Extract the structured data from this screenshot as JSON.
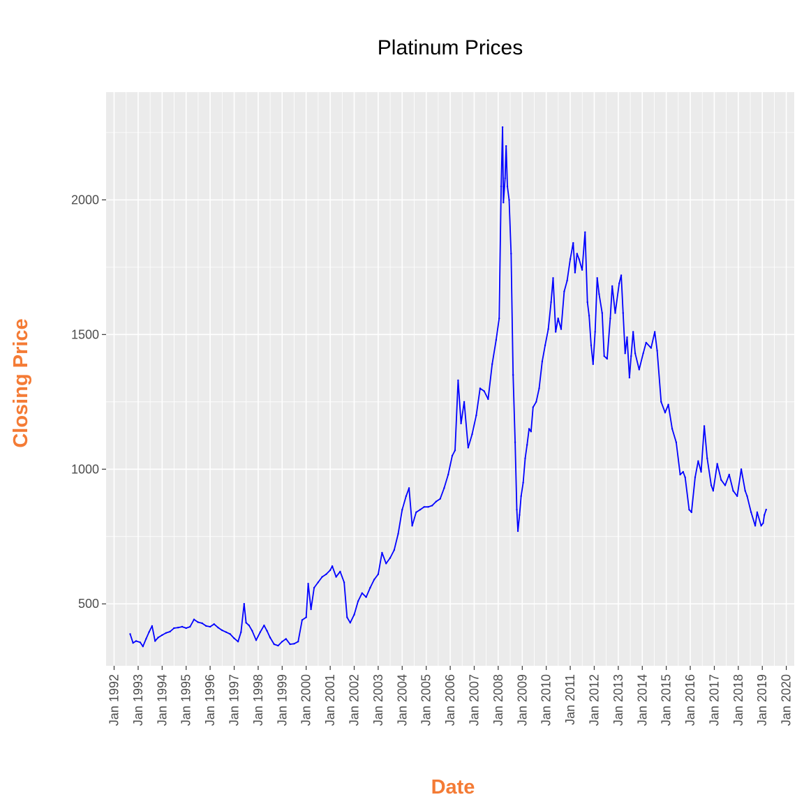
{
  "chart_data": {
    "type": "line",
    "title": "Platinum Prices",
    "xlabel": "Date",
    "ylabel": "Closing Price",
    "xlim": [
      "1991-09-01",
      "2020-05-01"
    ],
    "ylim": [
      270,
      2400
    ],
    "y_ticks": [
      500,
      1000,
      1500,
      2000
    ],
    "x_ticks": [
      {
        "label": "Jan 1992",
        "date": "1992-01-01"
      },
      {
        "label": "Jan 1993",
        "date": "1993-01-01"
      },
      {
        "label": "Jan 1994",
        "date": "1994-01-01"
      },
      {
        "label": "Jan 1995",
        "date": "1995-01-01"
      },
      {
        "label": "Jan 1996",
        "date": "1996-01-01"
      },
      {
        "label": "Jan 1997",
        "date": "1997-01-01"
      },
      {
        "label": "Jan 1998",
        "date": "1998-01-01"
      },
      {
        "label": "Jan 1999",
        "date": "1999-01-01"
      },
      {
        "label": "Jan 2000",
        "date": "2000-01-01"
      },
      {
        "label": "Jan 2001",
        "date": "2001-01-01"
      },
      {
        "label": "Jan 2002",
        "date": "2002-01-01"
      },
      {
        "label": "Jan 2003",
        "date": "2003-01-01"
      },
      {
        "label": "Jan 2004",
        "date": "2004-01-01"
      },
      {
        "label": "Jan 2005",
        "date": "2005-01-01"
      },
      {
        "label": "Jan 2006",
        "date": "2006-01-01"
      },
      {
        "label": "Jan 2007",
        "date": "2007-01-01"
      },
      {
        "label": "Jan 2008",
        "date": "2008-01-01"
      },
      {
        "label": "Jan 2009",
        "date": "2009-01-01"
      },
      {
        "label": "Jan 2010",
        "date": "2010-01-01"
      },
      {
        "label": "Jan 2011",
        "date": "2011-01-01"
      },
      {
        "label": "Jan 2012",
        "date": "2012-01-01"
      },
      {
        "label": "Jan 2013",
        "date": "2013-01-01"
      },
      {
        "label": "Jan 2014",
        "date": "2014-01-01"
      },
      {
        "label": "Jan 2015",
        "date": "2015-01-01"
      },
      {
        "label": "Jan 2016",
        "date": "2016-01-01"
      },
      {
        "label": "Jan 2017",
        "date": "2017-01-01"
      },
      {
        "label": "Jan 2018",
        "date": "2018-01-01"
      },
      {
        "label": "Jan 2019",
        "date": "2019-01-01"
      },
      {
        "label": "Jan 2020",
        "date": "2020-01-01"
      }
    ],
    "grid": true,
    "legend": "none",
    "series": [
      {
        "color": "#0000ff",
        "points": [
          [
            "1992-09-01",
            388
          ],
          [
            "1992-10-15",
            355
          ],
          [
            "1992-12-01",
            362
          ],
          [
            "1993-02-01",
            357
          ],
          [
            "1993-03-15",
            342
          ],
          [
            "1993-05-01",
            370
          ],
          [
            "1993-06-15",
            395
          ],
          [
            "1993-08-01",
            418
          ],
          [
            "1993-09-15",
            362
          ],
          [
            "1993-11-01",
            375
          ],
          [
            "1994-01-01",
            384
          ],
          [
            "1994-03-01",
            392
          ],
          [
            "1994-05-01",
            397
          ],
          [
            "1994-07-01",
            410
          ],
          [
            "1994-09-01",
            412
          ],
          [
            "1994-11-01",
            415
          ],
          [
            "1995-01-01",
            410
          ],
          [
            "1995-03-01",
            415
          ],
          [
            "1995-05-01",
            442
          ],
          [
            "1995-07-01",
            432
          ],
          [
            "1995-09-01",
            428
          ],
          [
            "1995-11-01",
            418
          ],
          [
            "1996-01-01",
            415
          ],
          [
            "1996-03-01",
            425
          ],
          [
            "1996-05-01",
            412
          ],
          [
            "1996-07-01",
            402
          ],
          [
            "1996-09-01",
            395
          ],
          [
            "1996-11-01",
            388
          ],
          [
            "1997-01-01",
            372
          ],
          [
            "1997-03-01",
            360
          ],
          [
            "1997-04-15",
            395
          ],
          [
            "1997-06-01",
            500
          ],
          [
            "1997-07-01",
            430
          ],
          [
            "1997-08-15",
            420
          ],
          [
            "1997-10-01",
            400
          ],
          [
            "1997-12-01",
            365
          ],
          [
            "1998-02-01",
            395
          ],
          [
            "1998-04-01",
            420
          ],
          [
            "1998-05-15",
            400
          ],
          [
            "1998-07-01",
            375
          ],
          [
            "1998-09-01",
            350
          ],
          [
            "1998-11-01",
            345
          ],
          [
            "1999-01-01",
            360
          ],
          [
            "1999-03-01",
            370
          ],
          [
            "1999-05-01",
            350
          ],
          [
            "1999-07-01",
            352
          ],
          [
            "1999-09-01",
            360
          ],
          [
            "1999-11-01",
            440
          ],
          [
            "2000-01-01",
            450
          ],
          [
            "2000-02-01",
            575
          ],
          [
            "2000-03-15",
            480
          ],
          [
            "2000-05-01",
            560
          ],
          [
            "2000-07-01",
            580
          ],
          [
            "2000-09-01",
            600
          ],
          [
            "2000-11-01",
            610
          ],
          [
            "2001-01-01",
            625
          ],
          [
            "2001-02-01",
            640
          ],
          [
            "2001-04-01",
            600
          ],
          [
            "2001-06-01",
            620
          ],
          [
            "2001-08-01",
            580
          ],
          [
            "2001-09-15",
            450
          ],
          [
            "2001-11-01",
            430
          ],
          [
            "2002-01-01",
            460
          ],
          [
            "2002-03-01",
            510
          ],
          [
            "2002-05-01",
            540
          ],
          [
            "2002-07-01",
            525
          ],
          [
            "2002-09-01",
            560
          ],
          [
            "2002-11-01",
            590
          ],
          [
            "2003-01-01",
            610
          ],
          [
            "2003-03-01",
            690
          ],
          [
            "2003-05-01",
            650
          ],
          [
            "2003-07-01",
            670
          ],
          [
            "2003-09-01",
            700
          ],
          [
            "2003-11-01",
            760
          ],
          [
            "2004-01-01",
            850
          ],
          [
            "2004-03-01",
            900
          ],
          [
            "2004-04-15",
            930
          ],
          [
            "2004-06-01",
            790
          ],
          [
            "2004-08-01",
            840
          ],
          [
            "2004-10-01",
            850
          ],
          [
            "2004-12-01",
            860
          ],
          [
            "2005-02-01",
            860
          ],
          [
            "2005-04-01",
            865
          ],
          [
            "2005-06-01",
            880
          ],
          [
            "2005-08-01",
            890
          ],
          [
            "2005-10-01",
            930
          ],
          [
            "2005-12-01",
            980
          ],
          [
            "2006-02-01",
            1050
          ],
          [
            "2006-03-15",
            1070
          ],
          [
            "2006-05-01",
            1330
          ],
          [
            "2006-06-15",
            1170
          ],
          [
            "2006-08-01",
            1250
          ],
          [
            "2006-10-01",
            1080
          ],
          [
            "2006-12-01",
            1130
          ],
          [
            "2007-02-01",
            1200
          ],
          [
            "2007-04-01",
            1300
          ],
          [
            "2007-06-01",
            1290
          ],
          [
            "2007-08-01",
            1260
          ],
          [
            "2007-10-01",
            1390
          ],
          [
            "2007-12-01",
            1480
          ],
          [
            "2008-01-15",
            1560
          ],
          [
            "2008-02-15",
            2050
          ],
          [
            "2008-03-07",
            2270
          ],
          [
            "2008-03-20",
            1990
          ],
          [
            "2008-04-15",
            2080
          ],
          [
            "2008-05-01",
            2200
          ],
          [
            "2008-05-20",
            2050
          ],
          [
            "2008-06-15",
            2000
          ],
          [
            "2008-07-15",
            1800
          ],
          [
            "2008-08-15",
            1350
          ],
          [
            "2008-09-15",
            1100
          ],
          [
            "2008-10-10",
            850
          ],
          [
            "2008-10-27",
            770
          ],
          [
            "2008-11-20",
            830
          ],
          [
            "2008-12-15",
            900
          ],
          [
            "2009-01-15",
            950
          ],
          [
            "2009-02-15",
            1040
          ],
          [
            "2009-03-15",
            1090
          ],
          [
            "2009-04-15",
            1150
          ],
          [
            "2009-05-15",
            1140
          ],
          [
            "2009-06-15",
            1230
          ],
          [
            "2009-08-01",
            1250
          ],
          [
            "2009-09-15",
            1300
          ],
          [
            "2009-11-01",
            1400
          ],
          [
            "2009-12-15",
            1460
          ],
          [
            "2010-02-01",
            1520
          ],
          [
            "2010-03-15",
            1620
          ],
          [
            "2010-04-15",
            1710
          ],
          [
            "2010-05-25",
            1510
          ],
          [
            "2010-07-01",
            1560
          ],
          [
            "2010-08-15",
            1520
          ],
          [
            "2010-10-01",
            1660
          ],
          [
            "2010-11-15",
            1700
          ],
          [
            "2011-01-01",
            1780
          ],
          [
            "2011-02-15",
            1840
          ],
          [
            "2011-03-15",
            1730
          ],
          [
            "2011-04-15",
            1800
          ],
          [
            "2011-05-15",
            1780
          ],
          [
            "2011-07-01",
            1740
          ],
          [
            "2011-08-15",
            1880
          ],
          [
            "2011-09-20",
            1620
          ],
          [
            "2011-10-15",
            1570
          ],
          [
            "2011-11-15",
            1460
          ],
          [
            "2011-12-15",
            1390
          ],
          [
            "2012-01-15",
            1510
          ],
          [
            "2012-02-15",
            1710
          ],
          [
            "2012-03-15",
            1650
          ],
          [
            "2012-05-01",
            1580
          ],
          [
            "2012-06-01",
            1420
          ],
          [
            "2012-07-15",
            1410
          ],
          [
            "2012-09-01",
            1560
          ],
          [
            "2012-10-01",
            1680
          ],
          [
            "2012-11-15",
            1580
          ],
          [
            "2013-01-15",
            1690
          ],
          [
            "2013-02-15",
            1720
          ],
          [
            "2013-03-15",
            1580
          ],
          [
            "2013-04-15",
            1430
          ],
          [
            "2013-05-15",
            1490
          ],
          [
            "2013-06-20",
            1340
          ],
          [
            "2013-07-15",
            1420
          ],
          [
            "2013-08-15",
            1510
          ],
          [
            "2013-09-15",
            1430
          ],
          [
            "2013-11-15",
            1370
          ],
          [
            "2014-01-15",
            1430
          ],
          [
            "2014-03-01",
            1470
          ],
          [
            "2014-05-15",
            1450
          ],
          [
            "2014-07-10",
            1510
          ],
          [
            "2014-08-15",
            1440
          ],
          [
            "2014-10-15",
            1250
          ],
          [
            "2014-12-15",
            1210
          ],
          [
            "2015-02-01",
            1240
          ],
          [
            "2015-04-01",
            1150
          ],
          [
            "2015-06-01",
            1100
          ],
          [
            "2015-08-01",
            980
          ],
          [
            "2015-09-15",
            990
          ],
          [
            "2015-10-15",
            970
          ],
          [
            "2015-12-15",
            850
          ],
          [
            "2016-01-20",
            840
          ],
          [
            "2016-03-15",
            970
          ],
          [
            "2016-05-01",
            1030
          ],
          [
            "2016-06-15",
            990
          ],
          [
            "2016-08-01",
            1160
          ],
          [
            "2016-09-15",
            1040
          ],
          [
            "2016-11-15",
            940
          ],
          [
            "2016-12-15",
            920
          ],
          [
            "2017-02-15",
            1020
          ],
          [
            "2017-04-15",
            960
          ],
          [
            "2017-06-15",
            940
          ],
          [
            "2017-08-15",
            980
          ],
          [
            "2017-10-15",
            920
          ],
          [
            "2017-12-15",
            900
          ],
          [
            "2018-02-15",
            1000
          ],
          [
            "2018-04-15",
            920
          ],
          [
            "2018-05-15",
            900
          ],
          [
            "2018-07-15",
            840
          ],
          [
            "2018-09-15",
            790
          ],
          [
            "2018-10-15",
            840
          ],
          [
            "2018-12-15",
            790
          ],
          [
            "2019-01-15",
            800
          ],
          [
            "2019-02-01",
            830
          ],
          [
            "2019-03-01",
            850
          ]
        ]
      }
    ]
  }
}
